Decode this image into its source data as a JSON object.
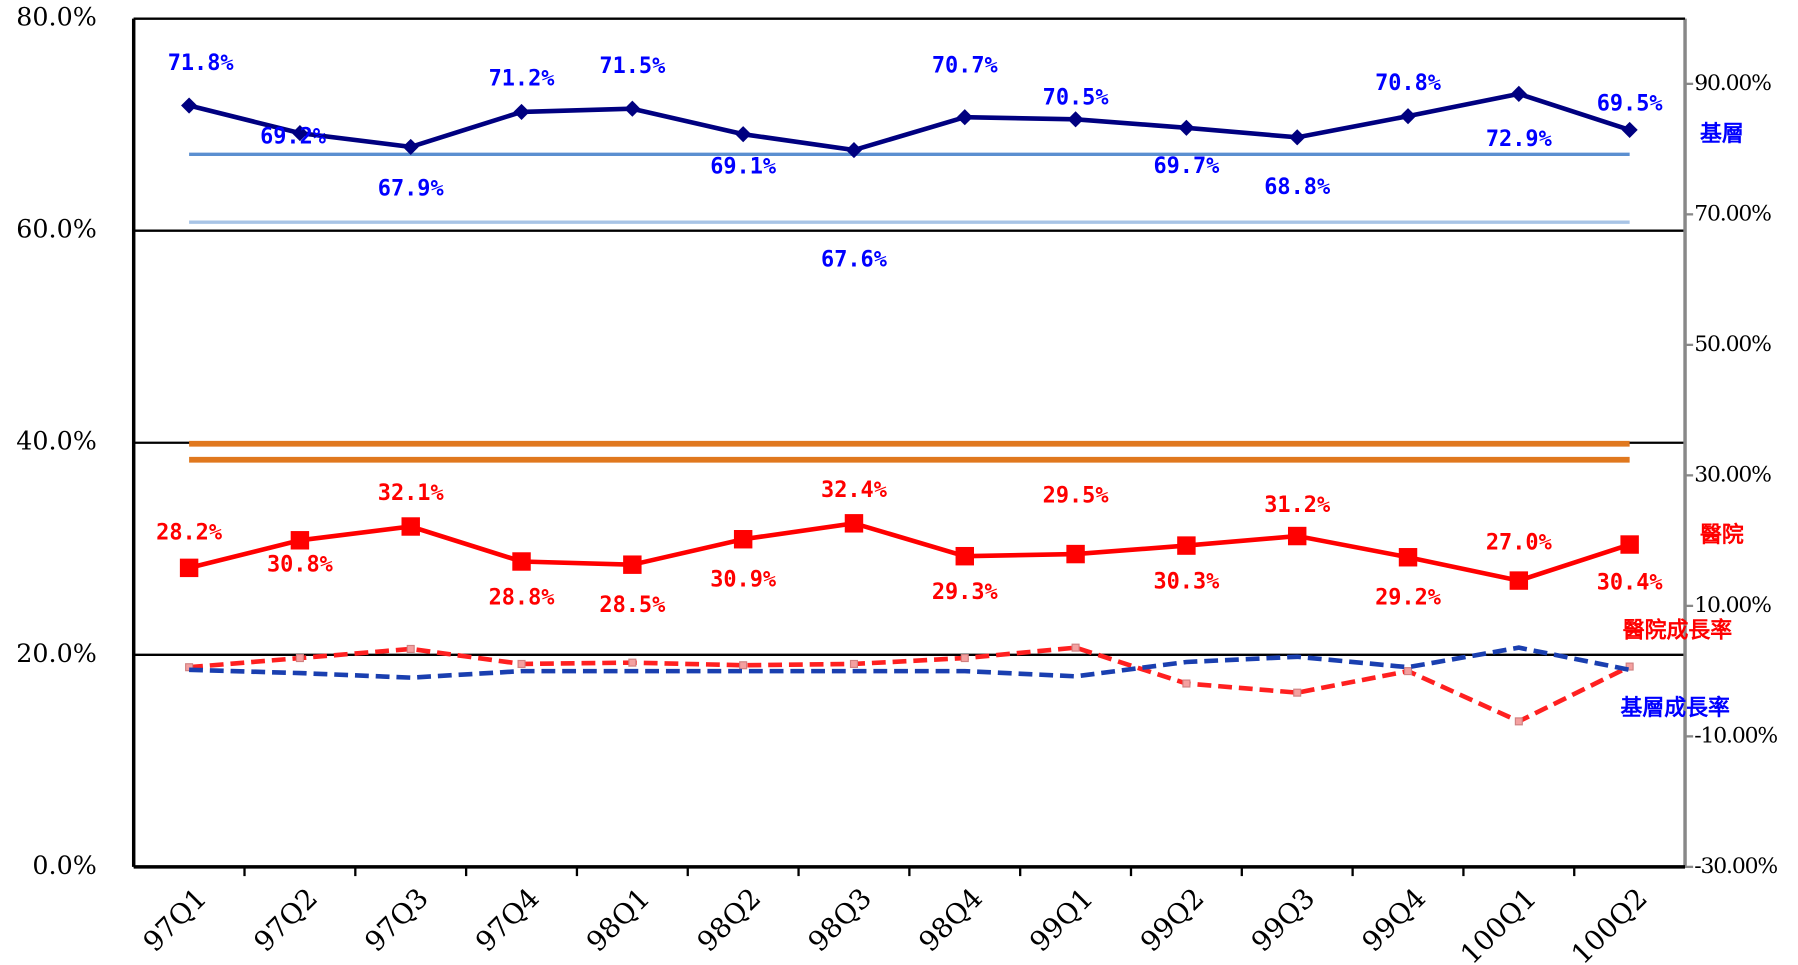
{
  "chart_data": {
    "type": "line",
    "categories": [
      "97Q1",
      "97Q2",
      "97Q3",
      "97Q4",
      "98Q1",
      "98Q2",
      "98Q3",
      "98Q4",
      "99Q1",
      "99Q2",
      "99Q3",
      "99Q4",
      "100Q1",
      "100Q2"
    ],
    "ylim": [
      0,
      80
    ],
    "yticks": [
      {
        "value": 0,
        "label": "0.0%"
      },
      {
        "value": 20,
        "label": "20.0%"
      },
      {
        "value": 40,
        "label": "40.0%"
      },
      {
        "value": 60,
        "label": "60.0%"
      },
      {
        "value": 80,
        "label": "80.0%"
      }
    ],
    "y2lim": [
      -30,
      100
    ],
    "y2ticks": [
      {
        "value": -30,
        "label": "-30.00%"
      },
      {
        "value": -10,
        "label": "-10.00%"
      },
      {
        "value": 10,
        "label": "10.00%"
      },
      {
        "value": 30,
        "label": "30.00%"
      },
      {
        "value": 50,
        "label": "50.00%"
      },
      {
        "value": 70,
        "label": "70.00%"
      },
      {
        "value": 90,
        "label": "90.00%"
      }
    ],
    "grid": true,
    "series": [
      {
        "name": "基層",
        "color": "#000080",
        "label_color": "#0000ff",
        "marker": "diamond",
        "values": [
          71.8,
          69.2,
          67.9,
          71.2,
          71.5,
          69.1,
          67.6,
          70.7,
          70.5,
          69.7,
          68.8,
          70.8,
          72.9,
          69.5
        ],
        "value_labels": [
          "71.8%",
          "69.2%",
          "67.9%",
          "71.2%",
          "71.5%",
          "69.1%",
          "67.6%",
          "70.7%",
          "70.5%",
          "69.7%",
          "68.8%",
          "70.8%",
          "72.9%",
          "69.5%"
        ]
      },
      {
        "name": "醫院",
        "color": "#ff0000",
        "label_color": "#ff0000",
        "marker": "square",
        "values": [
          28.2,
          30.8,
          32.1,
          28.8,
          28.5,
          30.9,
          32.4,
          29.3,
          29.5,
          30.3,
          31.2,
          29.2,
          27.0,
          30.4
        ],
        "value_labels": [
          "28.2%",
          "30.8%",
          "32.1%",
          "28.8%",
          "28.5%",
          "30.9%",
          "32.4%",
          "29.3%",
          "29.5%",
          "30.3%",
          "31.2%",
          "29.2%",
          "27.0%",
          "30.4%"
        ]
      },
      {
        "name": "醫院成長率",
        "color": "#ff2020",
        "label_color": "#ff0000",
        "axis": "y2",
        "dashed": true,
        "values": [
          0.6,
          2.0,
          3.4,
          1.1,
          1.3,
          0.9,
          1.1,
          2.0,
          3.6,
          -1.9,
          -3.3,
          0.0,
          -7.7,
          0.7
        ]
      },
      {
        "name": "基層成長率",
        "color": "#1a3fb0",
        "label_color": "#0000ff",
        "axis": "y2",
        "dashed": true,
        "values": [
          0.2,
          -0.3,
          -1.0,
          0.0,
          0.0,
          0.0,
          0.0,
          0.0,
          -0.8,
          1.4,
          2.2,
          0.6,
          3.6,
          0.2
        ]
      }
    ],
    "reference_lines": [
      {
        "value": 67.2,
        "color": "#5b8fd0"
      },
      {
        "value": 60.8,
        "color": "#a8c4e6"
      },
      {
        "value": 39.9,
        "color": "#e0781e"
      },
      {
        "value": 38.4,
        "color": "#e0781e"
      }
    ]
  }
}
